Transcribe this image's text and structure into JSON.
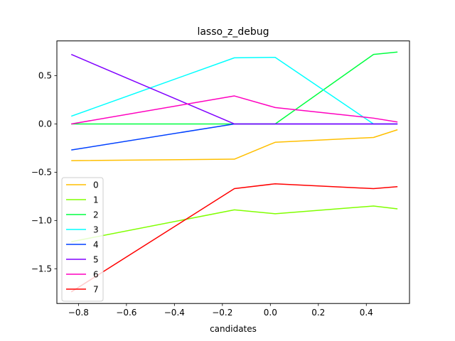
{
  "chart_data": {
    "type": "line",
    "title": "lasso_z_debug",
    "xlabel": "candidates",
    "ylabel": "",
    "xlim": [
      -0.89,
      0.58
    ],
    "ylim": [
      -1.86,
      0.86
    ],
    "xticks": [
      -0.8,
      -0.6,
      -0.4,
      -0.2,
      0.0,
      0.2,
      0.4
    ],
    "xtick_labels": [
      "−0.8",
      "−0.6",
      "−0.4",
      "−0.2",
      "0.0",
      "0.2",
      "0.4"
    ],
    "yticks": [
      -1.5,
      -1.0,
      -0.5,
      0.0,
      0.5
    ],
    "ytick_labels": [
      "−1.5",
      "−1.0",
      "−0.5",
      "0.0",
      "0.5"
    ],
    "grid": false,
    "legend_position": "lower-left",
    "x": [
      -0.83,
      -0.15,
      0.02,
      0.43,
      0.53
    ],
    "series": [
      {
        "name": "0",
        "color": "#ffbf00",
        "values": [
          -0.38,
          -0.365,
          -0.19,
          -0.14,
          -0.06
        ]
      },
      {
        "name": "1",
        "color": "#80ff00",
        "values": [
          -1.22,
          -0.89,
          -0.93,
          -0.85,
          -0.88
        ]
      },
      {
        "name": "2",
        "color": "#00ff40",
        "values": [
          0.0,
          0.0,
          0.0,
          0.72,
          0.745
        ]
      },
      {
        "name": "3",
        "color": "#00ffff",
        "values": [
          0.08,
          0.685,
          0.69,
          0.0,
          0.0
        ]
      },
      {
        "name": "4",
        "color": "#0040ff",
        "values": [
          -0.27,
          0.0,
          0.0,
          0.0,
          0.0
        ]
      },
      {
        "name": "5",
        "color": "#8000ff",
        "values": [
          0.72,
          0.0,
          0.0,
          0.0,
          0.0
        ]
      },
      {
        "name": "6",
        "color": "#ff00bf",
        "values": [
          0.0,
          0.29,
          0.17,
          0.06,
          0.02
        ]
      },
      {
        "name": "7",
        "color": "#ff0000",
        "values": [
          -1.74,
          -0.67,
          -0.62,
          -0.67,
          -0.65
        ]
      }
    ]
  }
}
